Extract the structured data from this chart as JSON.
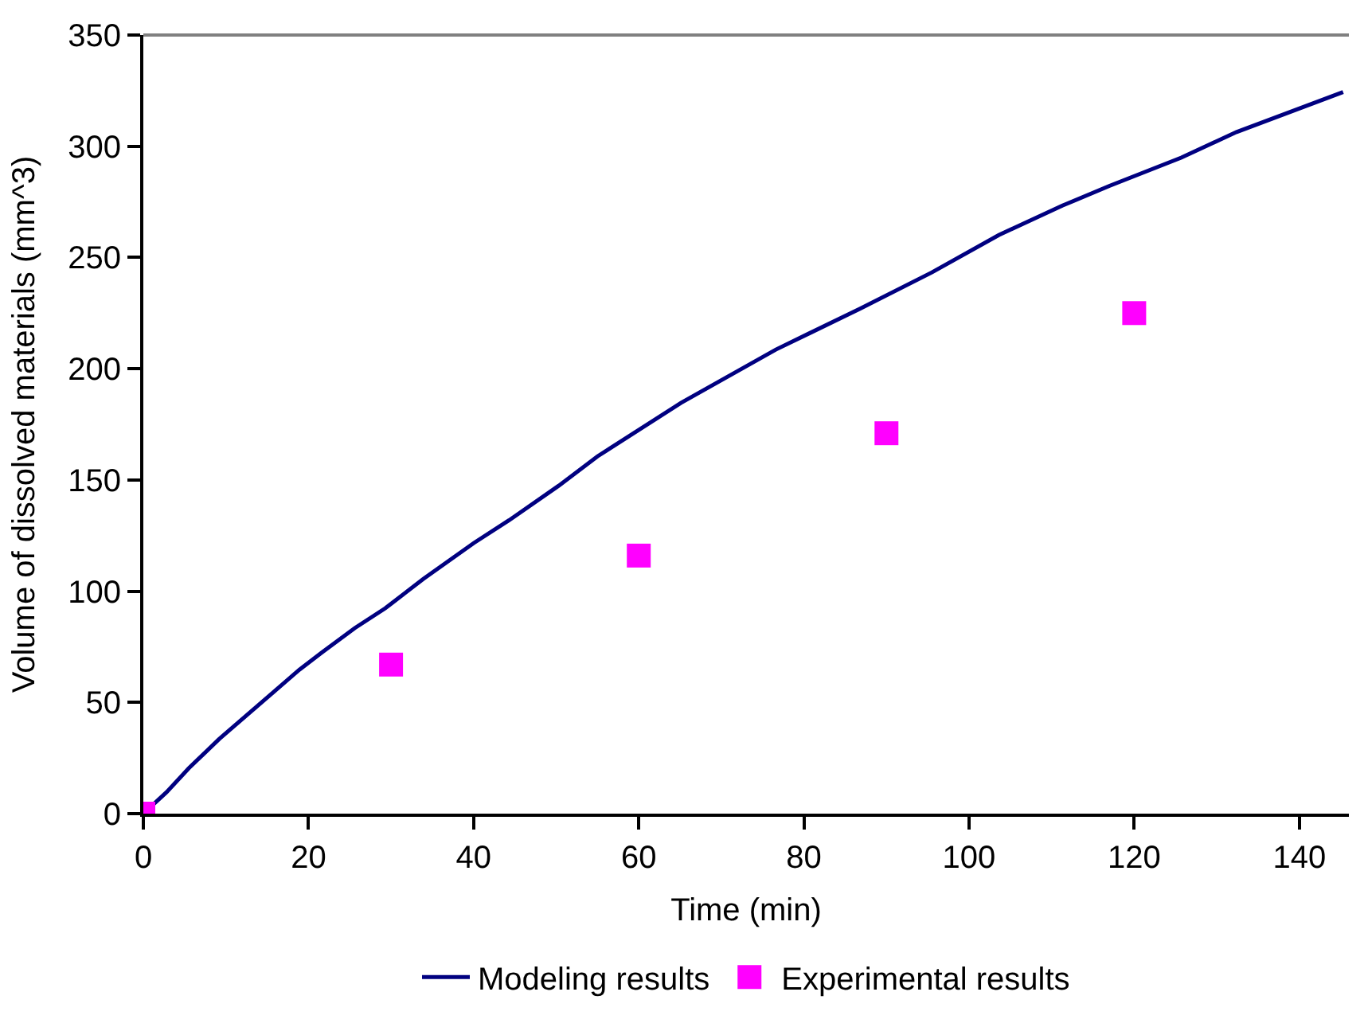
{
  "chart_data": {
    "type": "line",
    "xlabel": "Time (min)",
    "ylabel": "Volume of dissolved materials (mm^3)",
    "xlim": [
      0,
      146
    ],
    "xticks": [
      0,
      20,
      40,
      60,
      80,
      100,
      120,
      140
    ],
    "ylim": [
      0,
      350
    ],
    "yticks": [
      0,
      50,
      100,
      150,
      200,
      250,
      300,
      350
    ],
    "legend": "bottom",
    "series": [
      {
        "name": "Modeling results",
        "color": "#000080",
        "marker": "none",
        "line_style": "solid",
        "x": [
          0,
          2.8,
          5.5,
          9.2,
          15.9,
          18.9,
          21.6,
          25.6,
          29.3,
          33.9,
          40.0,
          44.3,
          50.3,
          55.0,
          65.1,
          76.6,
          86.8,
          95.5,
          103.6,
          111.3,
          117.0,
          125.7,
          132.4,
          145.3
        ],
        "values": [
          0,
          9.6,
          20.4,
          33.6,
          55.1,
          64.7,
          72.4,
          83.4,
          92.3,
          105.5,
          121.6,
          131.9,
          147.4,
          160.6,
          184.6,
          208.6,
          227.0,
          243.3,
          260.1,
          273.3,
          282.2,
          294.9,
          306.4,
          324.4
        ]
      },
      {
        "name": "Experimental results",
        "type": "scatter",
        "color": "#ff00ff",
        "marker": "square",
        "x": [
          0,
          30,
          60,
          90,
          120
        ],
        "values": [
          0,
          67,
          116,
          171,
          225
        ]
      }
    ]
  }
}
